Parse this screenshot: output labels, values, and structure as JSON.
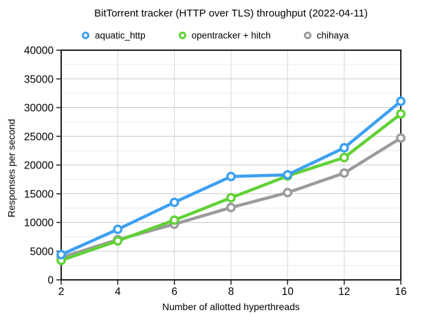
{
  "page": {
    "background": "#ffffff"
  },
  "chart_data": {
    "type": "line",
    "title": "BitTorrent tracker (HTTP over TLS) throughput (2022-04-11)",
    "xlabel": "Number of allotted hyperthreads",
    "ylabel": "Responses per second",
    "categories": [
      2,
      4,
      6,
      8,
      10,
      12,
      16
    ],
    "ylim": [
      0,
      40000
    ],
    "yticks": [
      0,
      5000,
      10000,
      15000,
      20000,
      25000,
      30000,
      35000,
      40000
    ],
    "minor_gridline_step": 2500,
    "grid": true,
    "legend_position": "top",
    "marker_style": "ring",
    "series": [
      {
        "name": "aquatic_http",
        "color": "#3da0f2",
        "values": [
          4400,
          8800,
          13500,
          18000,
          18300,
          23000,
          31100
        ]
      },
      {
        "name": "opentracker + hitch",
        "color": "#61d136",
        "values": [
          3400,
          6800,
          10400,
          14300,
          18100,
          21300,
          28900
        ]
      },
      {
        "name": "chihaya",
        "color": "#9b9b9b",
        "values": [
          3900,
          7000,
          9700,
          12600,
          15200,
          18600,
          24700
        ]
      }
    ],
    "colors": {
      "frame": "#1f1f1f",
      "major_gridline": "#c9c9c9",
      "minor_gridline": "#eaeaea",
      "vertical_gridline": "#d6d6d6",
      "text": "#000000"
    }
  }
}
